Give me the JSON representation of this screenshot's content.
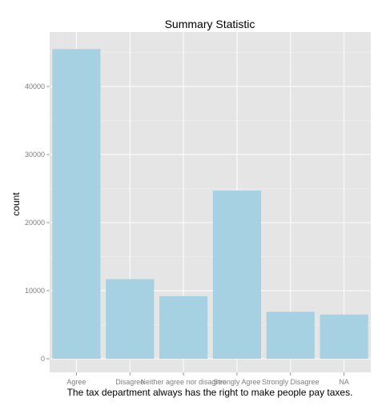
{
  "chart_data": {
    "type": "bar",
    "title": "Summary Statistic",
    "xlabel": "The tax department always has the right to make people pay taxes.",
    "ylabel": "count",
    "categories": [
      "Agree",
      "Disagree",
      "Neither agree nor disagree",
      "Strongly Agree",
      "Strongly Disagree",
      "NA"
    ],
    "values": [
      45500,
      11700,
      9200,
      24700,
      6900,
      6500
    ],
    "ylim": [
      -2000,
      48000
    ],
    "yticks": [
      0,
      10000,
      20000,
      30000,
      40000
    ],
    "ytick_labels": [
      "0",
      "10000",
      "20000",
      "30000",
      "40000"
    ],
    "grid": true,
    "legend": "none",
    "colors": {
      "bar": "#a6d1e2",
      "panel": "#e5e5e5",
      "grid_major": "#ffffff",
      "grid_minor": "#f2f2f2",
      "tick_text": "#7f7f7f"
    }
  }
}
